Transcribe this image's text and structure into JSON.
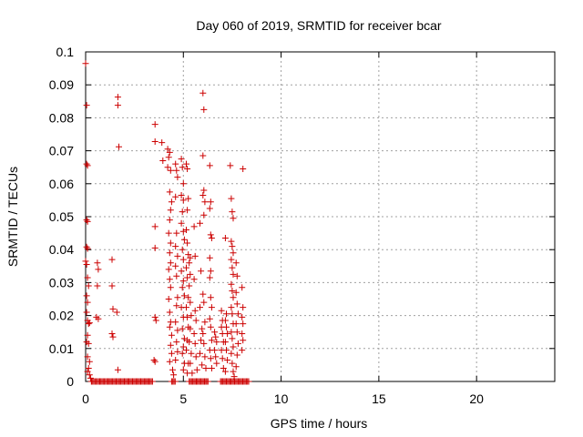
{
  "chart_data": {
    "type": "scatter",
    "title": "Day 060 of 2019, SRMTID for receiver bcar",
    "xlabel": "GPS time / hours",
    "ylabel": "SRMTID / TECUs",
    "xlim": [
      0,
      24
    ],
    "ylim": [
      0,
      0.1
    ],
    "x_ticks": [
      0,
      5,
      10,
      15,
      20
    ],
    "y_ticks": [
      0,
      0.01,
      0.02,
      0.03,
      0.04,
      0.05,
      0.06,
      0.07,
      0.08,
      0.09,
      0.1
    ],
    "x_tick_labels": [
      "0",
      "5",
      "10",
      "15",
      "20"
    ],
    "y_tick_labels": [
      "0",
      "0.01",
      "0.02",
      "0.03",
      "0.04",
      "0.05",
      "0.06",
      "0.07",
      "0.08",
      "0.09",
      "0.1"
    ],
    "grid": true,
    "marker": "+",
    "series": [
      {
        "name": "SRMTID",
        "color": "#cc0000",
        "points": [
          [
            0.0,
            0.0965
          ],
          [
            0.05,
            0.0838
          ],
          [
            0.05,
            0.066
          ],
          [
            0.1,
            0.0655
          ],
          [
            0.05,
            0.049
          ],
          [
            0.1,
            0.0485
          ],
          [
            0.05,
            0.0408
          ],
          [
            0.1,
            0.0403
          ],
          [
            0.0,
            0.0365
          ],
          [
            0.05,
            0.0355
          ],
          [
            0.1,
            0.0315
          ],
          [
            0.15,
            0.029
          ],
          [
            0.05,
            0.026
          ],
          [
            0.1,
            0.024
          ],
          [
            0.05,
            0.021
          ],
          [
            0.1,
            0.0185
          ],
          [
            0.15,
            0.0175
          ],
          [
            0.2,
            0.0178
          ],
          [
            0.1,
            0.014
          ],
          [
            0.05,
            0.012
          ],
          [
            0.15,
            0.0115
          ],
          [
            0.1,
            0.0075
          ],
          [
            0.2,
            0.006
          ],
          [
            0.15,
            0.004
          ],
          [
            0.1,
            0.003
          ],
          [
            0.2,
            0.002
          ],
          [
            0.25,
            0.001
          ],
          [
            0.3,
            0.0
          ],
          [
            0.6,
            0.036
          ],
          [
            0.65,
            0.034
          ],
          [
            0.6,
            0.029
          ],
          [
            0.55,
            0.0195
          ],
          [
            0.65,
            0.019
          ],
          [
            1.35,
            0.037
          ],
          [
            1.35,
            0.029
          ],
          [
            1.4,
            0.022
          ],
          [
            1.35,
            0.0145
          ],
          [
            1.4,
            0.0135
          ],
          [
            1.6,
            0.021
          ],
          [
            1.65,
            0.0863
          ],
          [
            1.65,
            0.0838
          ],
          [
            1.7,
            0.0712
          ],
          [
            1.65,
            0.0035
          ],
          [
            3.55,
            0.078
          ],
          [
            3.55,
            0.0728
          ],
          [
            3.55,
            0.047
          ],
          [
            3.55,
            0.0405
          ],
          [
            3.55,
            0.0195
          ],
          [
            3.6,
            0.0185
          ],
          [
            3.5,
            0.0065
          ],
          [
            3.55,
            0.006
          ],
          [
            3.9,
            0.0725
          ],
          [
            3.95,
            0.067
          ],
          [
            4.2,
            0.0705
          ],
          [
            4.3,
            0.0695
          ],
          [
            4.25,
            0.068
          ],
          [
            4.2,
            0.065
          ],
          [
            4.35,
            0.064
          ],
          [
            4.3,
            0.0575
          ],
          [
            4.4,
            0.0545
          ],
          [
            4.35,
            0.052
          ],
          [
            4.3,
            0.049
          ],
          [
            4.25,
            0.045
          ],
          [
            4.35,
            0.042
          ],
          [
            4.3,
            0.039
          ],
          [
            4.35,
            0.036
          ],
          [
            4.25,
            0.034
          ],
          [
            4.3,
            0.031
          ],
          [
            4.35,
            0.0285
          ],
          [
            4.25,
            0.025
          ],
          [
            4.3,
            0.021
          ],
          [
            4.35,
            0.018
          ],
          [
            4.3,
            0.0165
          ],
          [
            4.4,
            0.014
          ],
          [
            4.35,
            0.011
          ],
          [
            4.4,
            0.0085
          ],
          [
            4.3,
            0.006
          ],
          [
            4.45,
            0.0035
          ],
          [
            4.5,
            0.002
          ],
          [
            4.6,
            0.066
          ],
          [
            4.65,
            0.064
          ],
          [
            4.7,
            0.062
          ],
          [
            4.6,
            0.056
          ],
          [
            4.65,
            0.045
          ],
          [
            4.6,
            0.041
          ],
          [
            4.7,
            0.038
          ],
          [
            4.6,
            0.035
          ],
          [
            4.65,
            0.032
          ],
          [
            4.7,
            0.0255
          ],
          [
            4.65,
            0.023
          ],
          [
            4.6,
            0.018
          ],
          [
            4.7,
            0.0155
          ],
          [
            4.65,
            0.012
          ],
          [
            4.7,
            0.009
          ],
          [
            4.6,
            0.0065
          ],
          [
            4.9,
            0.0675
          ],
          [
            4.95,
            0.065
          ],
          [
            5.0,
            0.06
          ],
          [
            4.9,
            0.0565
          ],
          [
            5.0,
            0.055
          ],
          [
            4.95,
            0.0515
          ],
          [
            4.9,
            0.048
          ],
          [
            5.0,
            0.0455
          ],
          [
            5.05,
            0.043
          ],
          [
            4.95,
            0.04
          ],
          [
            5.0,
            0.037
          ],
          [
            4.9,
            0.0335
          ],
          [
            5.0,
            0.0305
          ],
          [
            4.95,
            0.0285
          ],
          [
            5.05,
            0.026
          ],
          [
            4.9,
            0.0225
          ],
          [
            5.0,
            0.0195
          ],
          [
            4.95,
            0.016
          ],
          [
            5.05,
            0.013
          ],
          [
            5.0,
            0.0105
          ],
          [
            4.95,
            0.0085
          ],
          [
            5.05,
            0.0055
          ],
          [
            5.0,
            0.0035
          ],
          [
            5.15,
            0.066
          ],
          [
            5.2,
            0.0645
          ],
          [
            5.25,
            0.0555
          ],
          [
            5.2,
            0.052
          ],
          [
            5.15,
            0.046
          ],
          [
            5.2,
            0.042
          ],
          [
            5.25,
            0.0385
          ],
          [
            5.15,
            0.0345
          ],
          [
            5.2,
            0.0315
          ],
          [
            5.25,
            0.0255
          ],
          [
            5.15,
            0.0225
          ],
          [
            5.2,
            0.0195
          ],
          [
            5.25,
            0.0165
          ],
          [
            5.2,
            0.0125
          ],
          [
            5.15,
            0.0095
          ],
          [
            5.25,
            0.0055
          ],
          [
            5.2,
            0.0025
          ],
          [
            5.35,
            0.0375
          ],
          [
            5.3,
            0.036
          ],
          [
            5.35,
            0.0325
          ],
          [
            5.3,
            0.029
          ],
          [
            5.35,
            0.024
          ],
          [
            5.4,
            0.02
          ],
          [
            5.35,
            0.016
          ],
          [
            5.3,
            0.012
          ],
          [
            5.4,
            0.0085
          ],
          [
            5.35,
            0.0055
          ],
          [
            5.45,
            0.0025
          ],
          [
            5.55,
            0.047
          ],
          [
            5.6,
            0.038
          ],
          [
            5.55,
            0.031
          ],
          [
            5.6,
            0.0215
          ],
          [
            5.65,
            0.0185
          ],
          [
            5.55,
            0.0145
          ],
          [
            5.6,
            0.0115
          ],
          [
            5.65,
            0.0075
          ],
          [
            5.7,
            0.0035
          ],
          [
            5.85,
            0.048
          ],
          [
            5.9,
            0.0335
          ],
          [
            5.85,
            0.0225
          ],
          [
            5.95,
            0.016
          ],
          [
            5.9,
            0.0125
          ],
          [
            5.85,
            0.0085
          ],
          [
            5.95,
            0.005
          ],
          [
            6.0,
            0.0875
          ],
          [
            6.05,
            0.0825
          ],
          [
            6.0,
            0.0685
          ],
          [
            6.05,
            0.058
          ],
          [
            6.0,
            0.0565
          ],
          [
            6.1,
            0.0545
          ],
          [
            6.05,
            0.0505
          ],
          [
            6.0,
            0.0265
          ],
          [
            6.05,
            0.024
          ],
          [
            6.1,
            0.018
          ],
          [
            6.0,
            0.0145
          ],
          [
            6.05,
            0.0115
          ],
          [
            6.1,
            0.0075
          ],
          [
            6.15,
            0.004
          ],
          [
            6.35,
            0.0655
          ],
          [
            6.4,
            0.0545
          ],
          [
            6.35,
            0.0525
          ],
          [
            6.4,
            0.0445
          ],
          [
            6.45,
            0.0435
          ],
          [
            6.35,
            0.0375
          ],
          [
            6.4,
            0.0335
          ],
          [
            6.35,
            0.0315
          ],
          [
            6.4,
            0.0255
          ],
          [
            6.45,
            0.0225
          ],
          [
            6.35,
            0.019
          ],
          [
            6.4,
            0.0165
          ],
          [
            6.45,
            0.0125
          ],
          [
            6.35,
            0.0095
          ],
          [
            6.4,
            0.007
          ],
          [
            6.45,
            0.004
          ],
          [
            6.6,
            0.015
          ],
          [
            6.65,
            0.0135
          ],
          [
            6.7,
            0.012
          ],
          [
            6.6,
            0.0095
          ],
          [
            6.65,
            0.0075
          ],
          [
            6.7,
            0.0055
          ],
          [
            6.95,
            0.0215
          ],
          [
            7.0,
            0.0185
          ],
          [
            6.95,
            0.0165
          ],
          [
            7.0,
            0.0145
          ],
          [
            7.05,
            0.012
          ],
          [
            6.95,
            0.0095
          ],
          [
            7.0,
            0.007
          ],
          [
            7.05,
            0.004
          ],
          [
            7.15,
            0.0435
          ],
          [
            7.2,
            0.0205
          ],
          [
            7.15,
            0.0185
          ],
          [
            7.2,
            0.0165
          ],
          [
            7.25,
            0.0145
          ],
          [
            7.15,
            0.012
          ],
          [
            7.2,
            0.0095
          ],
          [
            7.25,
            0.0065
          ],
          [
            7.15,
            0.003
          ],
          [
            7.4,
            0.0655
          ],
          [
            7.45,
            0.0555
          ],
          [
            7.5,
            0.0515
          ],
          [
            7.55,
            0.0495
          ],
          [
            7.45,
            0.0425
          ],
          [
            7.5,
            0.041
          ],
          [
            7.55,
            0.039
          ],
          [
            7.45,
            0.037
          ],
          [
            7.5,
            0.0345
          ],
          [
            7.55,
            0.0325
          ],
          [
            7.45,
            0.0295
          ],
          [
            7.5,
            0.0275
          ],
          [
            7.55,
            0.0255
          ],
          [
            7.45,
            0.0225
          ],
          [
            7.5,
            0.0205
          ],
          [
            7.55,
            0.0175
          ],
          [
            7.45,
            0.015
          ],
          [
            7.5,
            0.013
          ],
          [
            7.55,
            0.0105
          ],
          [
            7.45,
            0.0085
          ],
          [
            7.5,
            0.0055
          ],
          [
            7.55,
            0.003
          ],
          [
            7.6,
            0.0015
          ],
          [
            7.7,
            0.036
          ],
          [
            7.75,
            0.032
          ],
          [
            7.7,
            0.027
          ],
          [
            7.75,
            0.0235
          ],
          [
            7.8,
            0.0205
          ],
          [
            7.7,
            0.0175
          ],
          [
            7.75,
            0.015
          ],
          [
            7.8,
            0.0115
          ],
          [
            7.75,
            0.008
          ],
          [
            7.7,
            0.0045
          ],
          [
            8.05,
            0.0645
          ],
          [
            8.0,
            0.0285
          ],
          [
            8.05,
            0.0225
          ],
          [
            8.0,
            0.0195
          ],
          [
            8.05,
            0.0175
          ],
          [
            8.0,
            0.0145
          ],
          [
            8.05,
            0.0125
          ],
          [
            8.0,
            0.0095
          ]
        ],
        "zero_line_segments": [
          [
            0.3,
            3.45
          ],
          [
            4.4,
            4.6
          ],
          [
            5.3,
            6.3
          ],
          [
            6.9,
            8.35
          ]
        ]
      }
    ]
  }
}
